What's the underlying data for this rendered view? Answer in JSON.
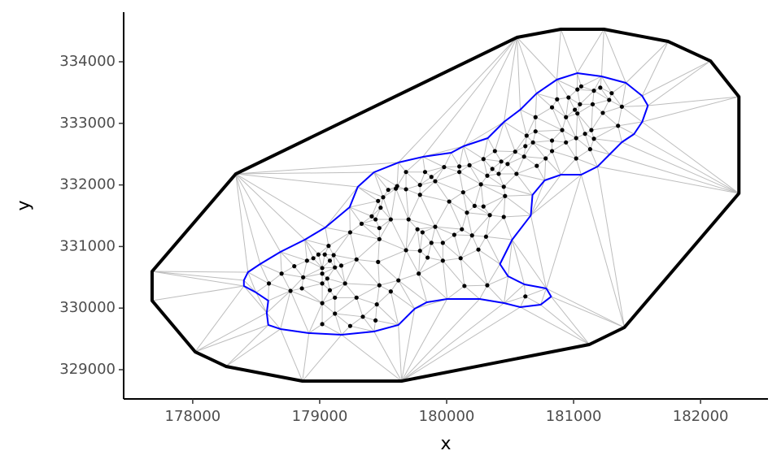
{
  "chart_data": {
    "type": "mesh",
    "x_label": "x",
    "y_label": "y",
    "xlim": [
      177456,
      182531
    ],
    "ylim": [
      328525,
      334805
    ],
    "xticks": [
      178000,
      179000,
      180000,
      181000,
      182000
    ],
    "yticks": [
      329000,
      330000,
      331000,
      332000,
      333000,
      334000
    ],
    "mesh_color": "#bdbdbd",
    "series": [
      {
        "kind": "polygon",
        "color": "#000000",
        "line_width": 4,
        "x": [
          177680,
          177680,
          178019,
          178262,
          178864,
          179645,
          181124,
          181400,
          182302,
          182302,
          182078,
          181745,
          181239,
          180900,
          180554,
          178339
        ],
        "y": [
          330596,
          330121,
          329290,
          329053,
          328815,
          328815,
          329409,
          329686,
          331863,
          333433,
          334013,
          334330,
          334528,
          334528,
          334396,
          332179
        ]
      },
      {
        "kind": "polygon",
        "color": "#0000ff",
        "line_width": 2,
        "x": [
          178403,
          178435,
          178531,
          178691,
          178883,
          179044,
          179236,
          179300,
          179428,
          179620,
          179812,
          180036,
          180132,
          180324,
          180452,
          180580,
          180708,
          180868,
          181028,
          181220,
          181412,
          181540,
          181585,
          181540,
          181476,
          181380,
          181284,
          181188,
          181060,
          180900,
          180772,
          180676,
          180663,
          180516,
          180420,
          180484,
          180612,
          180785,
          180823,
          180740,
          180580,
          180452,
          180260,
          180004,
          179844,
          179748,
          179620,
          179428,
          179172,
          178915,
          178691,
          178595,
          178583,
          178595,
          178499,
          178403
        ],
        "y": [
          330451,
          330583,
          330715,
          330913,
          331111,
          331309,
          331639,
          331968,
          332206,
          332364,
          332456,
          332522,
          332628,
          332760,
          333024,
          333222,
          333485,
          333710,
          333815,
          333763,
          333657,
          333446,
          333288,
          333024,
          332826,
          332694,
          332496,
          332298,
          332166,
          332166,
          332074,
          331836,
          331506,
          331111,
          330715,
          330517,
          330385,
          330319,
          330187,
          330055,
          330016,
          330082,
          330148,
          330148,
          330095,
          329989,
          329726,
          329620,
          329567,
          329594,
          329660,
          329726,
          329923,
          330121,
          330253,
          330359
        ]
      },
      {
        "kind": "points",
        "color": "#000000",
        "point_size": 2.6,
        "x": [
          178600,
          178700,
          178770,
          178800,
          178860,
          178870,
          178900,
          178950,
          178990,
          179040,
          179070,
          179080,
          179110,
          179120,
          179020,
          179020,
          179060,
          179080,
          179020,
          179020,
          179120,
          179170,
          179200,
          179120,
          179020,
          179240,
          179290,
          179340,
          179440,
          179450,
          179470,
          179560,
          179620,
          179460,
          179290,
          179240,
          179330,
          179410,
          179440,
          179470,
          179470,
          179480,
          179500,
          179540,
          179460,
          179610,
          179560,
          179700,
          179770,
          179810,
          179910,
          179970,
          180060,
          179880,
          179680,
          179790,
          179780,
          179850,
          179970,
          180110,
          180140,
          180320,
          180310,
          180250,
          180200,
          180120,
          180160,
          180020,
          180130,
          180220,
          180290,
          180340,
          180450,
          180460,
          180450,
          180270,
          180320,
          180360,
          180410,
          180550,
          180430,
          180610,
          180710,
          180780,
          180630,
          180620,
          180680,
          180700,
          180830,
          180830,
          180910,
          180940,
          181090,
          181140,
          181160,
          181130,
          181020,
          181020,
          180940,
          181030,
          181050,
          181150,
          181160,
          181280,
          181300,
          181380,
          181350,
          181230,
          181210,
          181060,
          181030,
          180960,
          181010,
          180830,
          180870,
          180700,
          180540,
          180480,
          180380,
          180290,
          180180,
          180100,
          180100,
          179980,
          179830,
          179880,
          179910,
          179790,
          179680,
          179600,
          179680,
          179790,
          180620
        ],
        "y": [
          330400,
          330560,
          330280,
          330680,
          330320,
          330500,
          330770,
          330810,
          330870,
          330870,
          331010,
          330770,
          330860,
          330660,
          330650,
          330560,
          330480,
          330290,
          330400,
          330080,
          330170,
          330690,
          330400,
          329910,
          329740,
          329710,
          330170,
          329860,
          329800,
          330060,
          330370,
          330270,
          330450,
          330750,
          330790,
          331230,
          331370,
          331490,
          331440,
          331300,
          331120,
          331630,
          331800,
          331920,
          331740,
          331980,
          331440,
          331440,
          331280,
          331230,
          331320,
          331060,
          331190,
          331060,
          330940,
          330930,
          330560,
          330820,
          330770,
          330810,
          330360,
          330370,
          331160,
          330950,
          331180,
          331280,
          331550,
          331730,
          331880,
          331660,
          331650,
          331510,
          331480,
          331820,
          331970,
          332010,
          332150,
          332260,
          332180,
          332180,
          332380,
          332460,
          332310,
          332430,
          332800,
          332630,
          332690,
          332870,
          332720,
          332550,
          332890,
          332690,
          332830,
          332890,
          332750,
          332580,
          332430,
          332760,
          333100,
          333160,
          333310,
          333310,
          333530,
          333380,
          333490,
          333270,
          332960,
          333170,
          333580,
          333600,
          333550,
          333420,
          333220,
          333260,
          333390,
          333100,
          332540,
          332340,
          332550,
          332420,
          332320,
          332300,
          332210,
          332290,
          332210,
          332130,
          332060,
          332000,
          332210,
          331940,
          331930,
          331840,
          330190
        ]
      }
    ]
  }
}
